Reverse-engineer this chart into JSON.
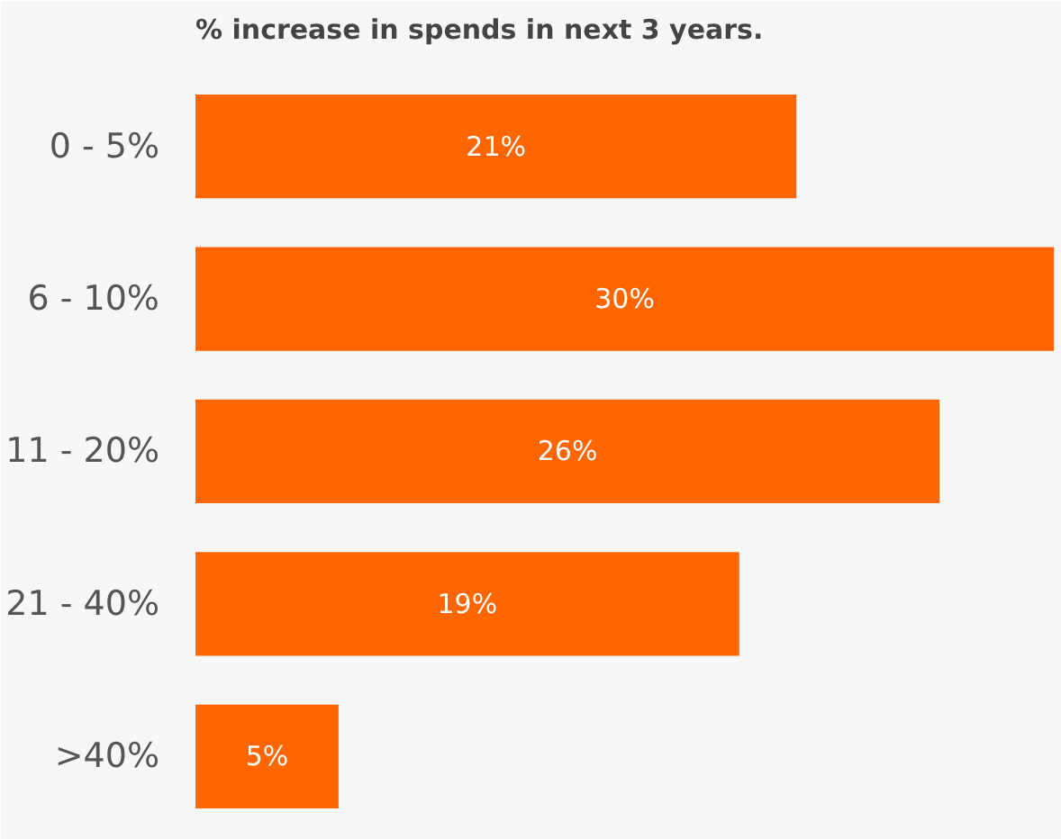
{
  "chart_data": {
    "type": "bar",
    "orientation": "horizontal",
    "title": "% increase in spends in next 3 years.",
    "categories": [
      "0 - 5%",
      "6 - 10%",
      "11 - 20%",
      "21 - 40%",
      ">40%"
    ],
    "values": [
      21,
      30,
      26,
      19,
      5
    ],
    "value_labels": [
      "21%",
      "30%",
      "26%",
      "19%",
      "5%"
    ],
    "color": "#ff6600",
    "grid": false
  }
}
